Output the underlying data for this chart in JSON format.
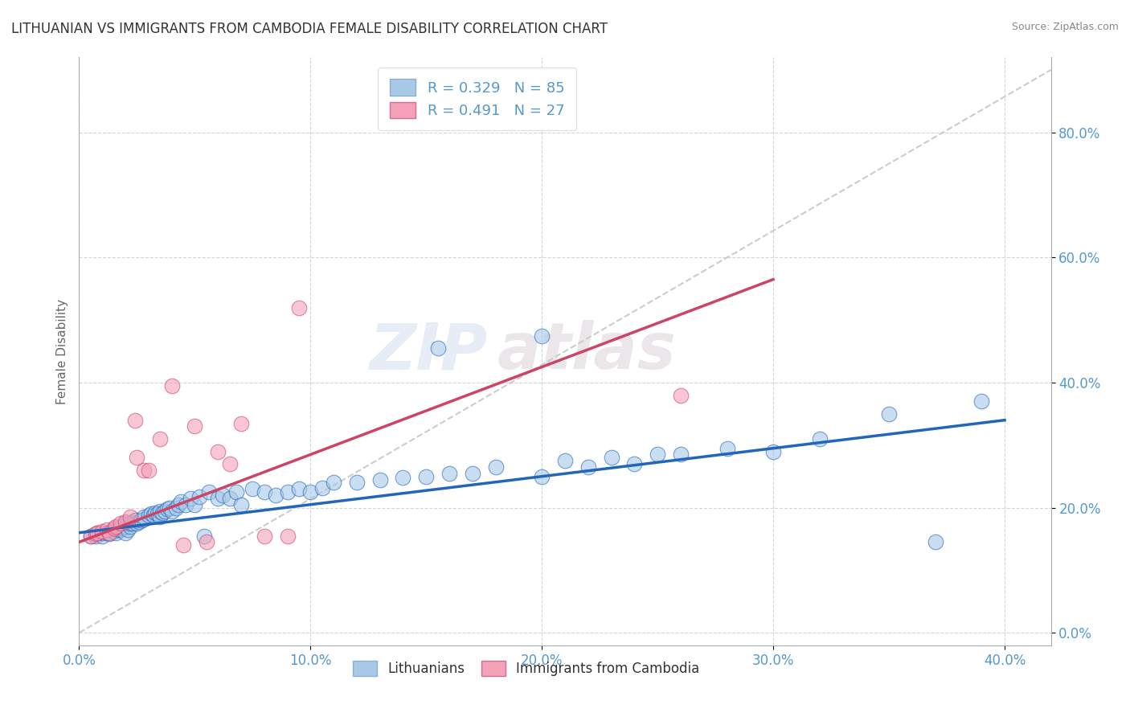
{
  "title": "LITHUANIAN VS IMMIGRANTS FROM CAMBODIA FEMALE DISABILITY CORRELATION CHART",
  "source": "Source: ZipAtlas.com",
  "xlim": [
    0.0,
    0.42
  ],
  "ylim": [
    -0.02,
    0.92
  ],
  "legend_r1": "R = 0.329",
  "legend_n1": "N = 85",
  "legend_r2": "R = 0.491",
  "legend_n2": "N = 27",
  "blue_color": "#a8c8e8",
  "pink_color": "#f4a0b8",
  "blue_line_color": "#2266bb",
  "pink_line_color": "#cc4466",
  "grey_line_color": "#cccccc",
  "background_color": "#ffffff",
  "watermark": "ZIPAtlas",
  "ylabel": "Female Disability",
  "ytick_vals": [
    0.0,
    0.2,
    0.4,
    0.6,
    0.8
  ],
  "xtick_vals": [
    0.0,
    0.1,
    0.2,
    0.3,
    0.4
  ],
  "tick_color": "#5599cc",
  "blue_scatter_x": [
    0.005,
    0.007,
    0.008,
    0.01,
    0.01,
    0.012,
    0.013,
    0.015,
    0.015,
    0.016,
    0.017,
    0.018,
    0.018,
    0.019,
    0.02,
    0.02,
    0.02,
    0.021,
    0.021,
    0.022,
    0.022,
    0.023,
    0.024,
    0.025,
    0.025,
    0.026,
    0.027,
    0.028,
    0.028,
    0.03,
    0.031,
    0.032,
    0.033,
    0.034,
    0.035,
    0.035,
    0.036,
    0.037,
    0.038,
    0.039,
    0.04,
    0.042,
    0.043,
    0.044,
    0.046,
    0.048,
    0.05,
    0.052,
    0.054,
    0.056,
    0.06,
    0.062,
    0.065,
    0.068,
    0.07,
    0.075,
    0.08,
    0.085,
    0.09,
    0.095,
    0.1,
    0.105,
    0.11,
    0.12,
    0.13,
    0.14,
    0.15,
    0.16,
    0.17,
    0.18,
    0.2,
    0.21,
    0.22,
    0.23,
    0.24,
    0.25,
    0.26,
    0.28,
    0.3,
    0.32,
    0.35,
    0.37,
    0.39,
    0.155,
    0.2
  ],
  "blue_scatter_y": [
    0.155,
    0.155,
    0.16,
    0.155,
    0.16,
    0.16,
    0.158,
    0.162,
    0.165,
    0.16,
    0.165,
    0.165,
    0.17,
    0.168,
    0.16,
    0.17,
    0.175,
    0.165,
    0.175,
    0.17,
    0.175,
    0.175,
    0.18,
    0.175,
    0.18,
    0.178,
    0.18,
    0.182,
    0.185,
    0.188,
    0.19,
    0.188,
    0.192,
    0.19,
    0.185,
    0.195,
    0.192,
    0.195,
    0.198,
    0.2,
    0.195,
    0.2,
    0.205,
    0.21,
    0.205,
    0.215,
    0.205,
    0.218,
    0.155,
    0.225,
    0.215,
    0.22,
    0.215,
    0.225,
    0.205,
    0.23,
    0.225,
    0.22,
    0.225,
    0.23,
    0.225,
    0.232,
    0.24,
    0.24,
    0.245,
    0.248,
    0.25,
    0.255,
    0.255,
    0.265,
    0.25,
    0.275,
    0.265,
    0.28,
    0.27,
    0.285,
    0.285,
    0.295,
    0.29,
    0.31,
    0.35,
    0.145,
    0.37,
    0.455,
    0.475
  ],
  "pink_scatter_x": [
    0.005,
    0.007,
    0.008,
    0.01,
    0.012,
    0.013,
    0.015,
    0.016,
    0.018,
    0.02,
    0.022,
    0.024,
    0.025,
    0.028,
    0.03,
    0.035,
    0.04,
    0.045,
    0.05,
    0.055,
    0.06,
    0.065,
    0.07,
    0.08,
    0.09,
    0.095,
    0.26
  ],
  "pink_scatter_y": [
    0.155,
    0.158,
    0.16,
    0.162,
    0.165,
    0.16,
    0.168,
    0.17,
    0.175,
    0.178,
    0.185,
    0.34,
    0.28,
    0.26,
    0.26,
    0.31,
    0.395,
    0.14,
    0.33,
    0.145,
    0.29,
    0.27,
    0.335,
    0.155,
    0.155,
    0.52,
    0.38
  ],
  "blue_trend_x": [
    0.0,
    0.4
  ],
  "blue_trend_y": [
    0.16,
    0.34
  ],
  "pink_trend_x": [
    0.0,
    0.3
  ],
  "pink_trend_y": [
    0.145,
    0.565
  ],
  "grey_trend_x": [
    0.0,
    0.42
  ],
  "grey_trend_y": [
    0.0,
    0.9
  ]
}
